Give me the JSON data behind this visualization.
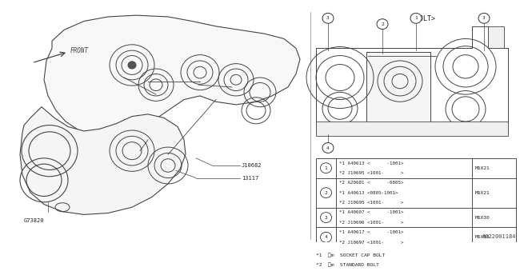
{
  "bg_color": "#ffffff",
  "bolt_header": "<BOLT>",
  "part_number_label": "A022001184",
  "front_label": "FRONT",
  "table_rows": [
    {
      "num": "1",
      "lines": [
        "*1 A40613 <      -1001>",
        "*2 J10695 <1001-      >"
      ],
      "size": "M6X21"
    },
    {
      "num": "2",
      "lines": [
        "*2 A20681 <      -0805>",
        "*1 A40613 <0805-1001>",
        "*2 J10695 <1001-      >"
      ],
      "size": "M6X21"
    },
    {
      "num": "3",
      "lines": [
        "*1 A40607 <      -1001>",
        "*2 J10696 <1001-      >"
      ],
      "size": "M6X30"
    },
    {
      "num": "4",
      "lines": [
        "*1 A40617 <      -1001>",
        "*2 J10697 <1001-      >"
      ],
      "size": "M6X53"
    }
  ],
  "footnotes": [
    "*1  (c)m  SOCKET CAP BOLT",
    "*2  (c)m  STANDARD BOLT"
  ]
}
